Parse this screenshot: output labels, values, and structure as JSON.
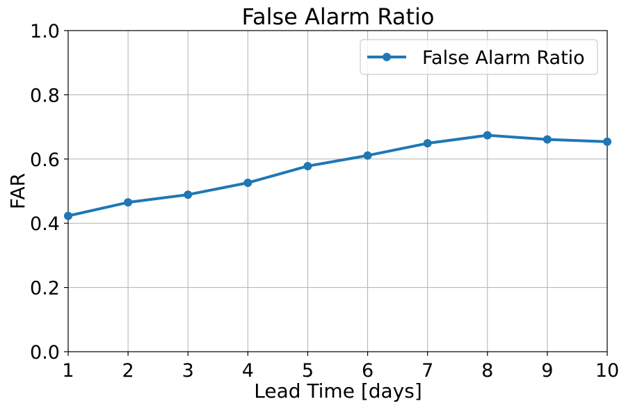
{
  "chart_data": {
    "type": "line",
    "title": "False Alarm Ratio",
    "xlabel": "Lead Time [days]",
    "ylabel": "FAR",
    "x": [
      1,
      2,
      3,
      4,
      5,
      6,
      7,
      8,
      9,
      10
    ],
    "xlim": [
      1,
      10
    ],
    "ylim": [
      0.0,
      1.0
    ],
    "xticks": [
      "1",
      "2",
      "3",
      "4",
      "5",
      "6",
      "7",
      "8",
      "9",
      "10"
    ],
    "yticks": [
      "0.0",
      "0.2",
      "0.4",
      "0.6",
      "0.8",
      "1.0"
    ],
    "grid": true,
    "legend_position": "top-right",
    "series": [
      {
        "name": "False Alarm Ratio",
        "color": "#1f77b4",
        "marker": "circle",
        "values": [
          0.423,
          0.465,
          0.489,
          0.526,
          0.578,
          0.611,
          0.649,
          0.674,
          0.661,
          0.654
        ]
      }
    ]
  }
}
